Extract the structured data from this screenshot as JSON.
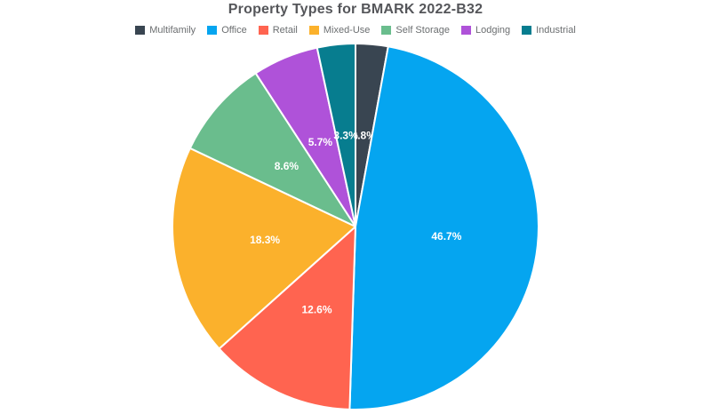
{
  "chart_data": {
    "type": "pie",
    "title": "Property Types for BMARK 2022-B32",
    "categories": [
      "Multifamily",
      "Office",
      "Retail",
      "Mixed-Use",
      "Self Storage",
      "Lodging",
      "Industrial"
    ],
    "values": [
      2.8,
      46.7,
      12.6,
      18.3,
      8.6,
      5.7,
      3.3
    ],
    "value_labels": [
      "2.8%",
      "46.7%",
      "12.6%",
      "18.3%",
      "8.6%",
      "5.7%",
      "3.3%"
    ],
    "colors": [
      "#394551",
      "#05A5F0",
      "#FF6450",
      "#FBB12C",
      "#6ABD8D",
      "#AF52D9",
      "#077D8F"
    ],
    "unit": "%",
    "legend_position": "top",
    "start_angle_deg": 0,
    "direction": "clockwise",
    "slice_border_color": "#FFFFFF",
    "slice_label_color": "#FFFFFF",
    "title_color": "#55565A",
    "legend_text_color": "#6B6E70",
    "background": "#FFFFFF"
  }
}
